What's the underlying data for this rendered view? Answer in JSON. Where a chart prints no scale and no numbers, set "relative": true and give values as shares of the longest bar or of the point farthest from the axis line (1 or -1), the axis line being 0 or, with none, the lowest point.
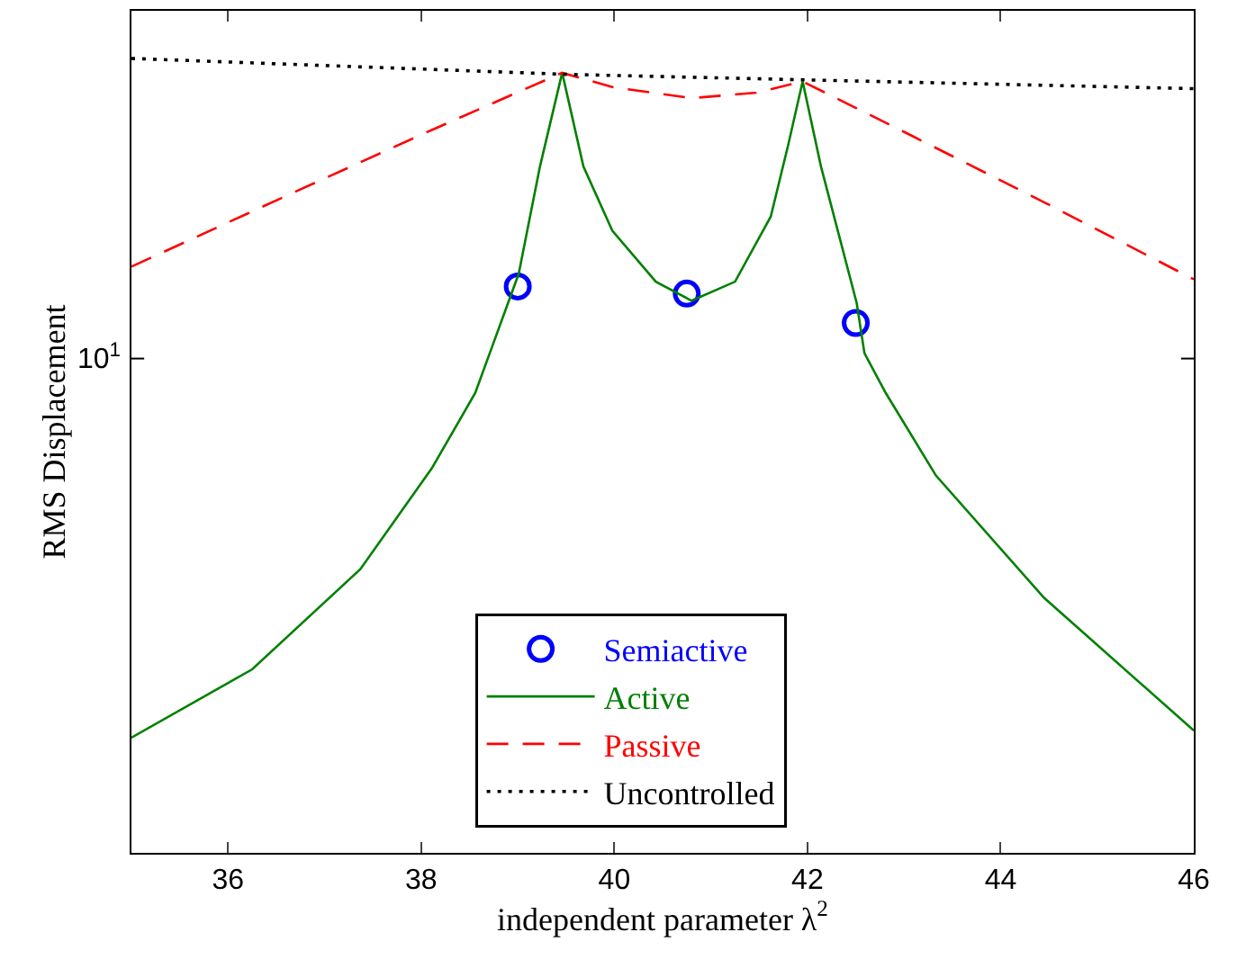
{
  "chart_data": {
    "type": "line",
    "relative": true,
    "xlabel": "independent parameter λ$^{2}$",
    "ylabel": "RMS Displacement",
    "xlim": [
      35,
      46
    ],
    "xticks": [
      36,
      38,
      40,
      42,
      44,
      46
    ],
    "tick_labels": "x",
    "legend": "bottom",
    "annotations": [
      "10$^{1}$"
    ],
    "series": [
      {
        "name": "Semiactive",
        "type": "scatter",
        "marker": "circle",
        "color": "#0000ff",
        "x": [
          39,
          40.75,
          42.5
        ],
        "values": [
          0.713,
          0.704,
          0.667
        ]
      },
      {
        "name": "Active",
        "line_style": "solid",
        "color": "#008000",
        "x": [
          35,
          36.25,
          37.37,
          38.11,
          38.56,
          38.71,
          39.01,
          39.23,
          39.46,
          39.68,
          39.98,
          40.43,
          40.8,
          41.25,
          41.62,
          41.8,
          41.95,
          42.14,
          42.51,
          42.59,
          42.81,
          43.33,
          44.45,
          46
        ],
        "values": [
          0.145,
          0.231,
          0.357,
          0.484,
          0.579,
          0.629,
          0.729,
          0.864,
          0.982,
          0.864,
          0.783,
          0.719,
          0.695,
          0.719,
          0.801,
          0.891,
          0.971,
          0.864,
          0.692,
          0.629,
          0.579,
          0.475,
          0.321,
          0.154
        ]
      },
      {
        "name": "Passive",
        "type": "line",
        "line_style": "dashed",
        "color": "#ff0000",
        "x": [
          35,
          36.62,
          38.11,
          39.46,
          39.98,
          40.8,
          41.47,
          41.95,
          42.96,
          44.45,
          46
        ],
        "values": [
          0.738,
          0.828,
          0.91,
          0.982,
          0.964,
          0.95,
          0.957,
          0.971,
          0.91,
          0.819,
          0.722
        ]
      },
      {
        "name": "Uncontrolled",
        "type": "line",
        "line_style": "dotted",
        "color": "#000000",
        "x": [
          35,
          39.5,
          42,
          46
        ],
        "values": [
          1,
          0.98,
          0.973,
          0.962
        ]
      }
    ]
  }
}
